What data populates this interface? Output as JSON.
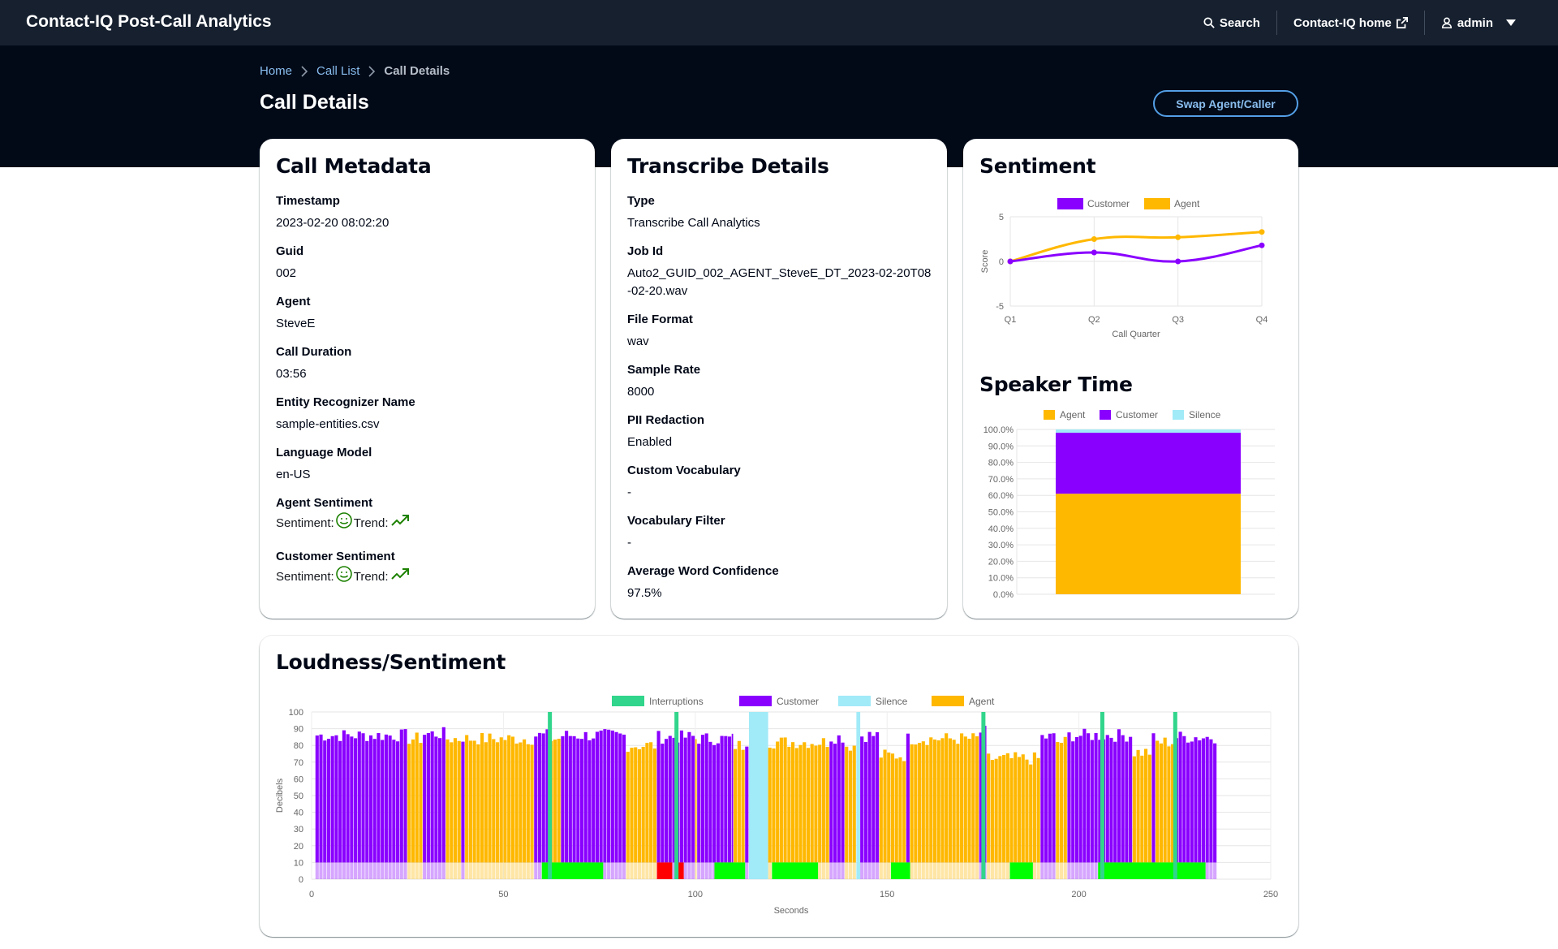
{
  "nav": {
    "title": "Contact-IQ Post-Call Analytics",
    "search_label": "Search",
    "home_label": "Contact-IQ home",
    "user_label": "admin"
  },
  "breadcrumb": [
    "Home",
    "Call List",
    "Call Details"
  ],
  "page": {
    "title": "Call Details",
    "swap_button": "Swap Agent/Caller"
  },
  "metadata": {
    "title": "Call Metadata",
    "fields": [
      {
        "label": "Timestamp",
        "value": "2023-02-20 08:02:20"
      },
      {
        "label": "Guid",
        "value": "002"
      },
      {
        "label": "Agent",
        "value": "SteveE"
      },
      {
        "label": "Call Duration",
        "value": "03:56"
      },
      {
        "label": "Entity Recognizer Name",
        "value": "sample-entities.csv"
      },
      {
        "label": "Language Model",
        "value": "en-US"
      }
    ],
    "agent_sentiment": {
      "label": "Agent Sentiment",
      "sentiment_text": "Sentiment:",
      "trend_text": "Trend:"
    },
    "customer_sentiment": {
      "label": "Customer Sentiment",
      "sentiment_text": "Sentiment:",
      "trend_text": "Trend:"
    }
  },
  "transcribe": {
    "title": "Transcribe Details",
    "fields": [
      {
        "label": "Type",
        "value": "Transcribe Call Analytics"
      },
      {
        "label": "Job Id",
        "value": "Auto2_GUID_002_AGENT_SteveE_DT_2023-02-20T08-02-20.wav"
      },
      {
        "label": "File Format",
        "value": "wav"
      },
      {
        "label": "Sample Rate",
        "value": "8000"
      },
      {
        "label": "PII Redaction",
        "value": "Enabled"
      },
      {
        "label": "Custom Vocabulary",
        "value": "-"
      },
      {
        "label": "Vocabulary Filter",
        "value": "-"
      },
      {
        "label": "Average Word Confidence",
        "value": "97.5%"
      }
    ]
  },
  "sentiment_card": {
    "title": "Sentiment",
    "speaker_time_title": "Speaker Time"
  },
  "loudness_card": {
    "title": "Loudness/Sentiment"
  },
  "colors": {
    "customer": "#8a00ff",
    "agent": "#ffb800",
    "silence": "#a1eaf8",
    "interruptions": "#31d58b",
    "positive": "#00ff00",
    "negative": "#ff0000"
  },
  "chart_data": [
    {
      "type": "line",
      "id": "sentiment",
      "categories": [
        "Q1",
        "Q2",
        "Q3",
        "Q4"
      ],
      "series": [
        {
          "name": "Customer",
          "values": [
            0,
            1,
            0,
            1.8
          ]
        },
        {
          "name": "Agent",
          "values": [
            0,
            2.5,
            2.7,
            3.3
          ]
        }
      ],
      "xlabel": "Call Quarter",
      "ylabel": "Score",
      "ylim": [
        -5,
        5
      ],
      "yticks": [
        "5",
        "0",
        "-5"
      ],
      "legend": "top",
      "grid": true
    },
    {
      "type": "bar",
      "id": "speaker_time",
      "stacked": true,
      "series": [
        {
          "name": "Agent",
          "values": [
            61
          ]
        },
        {
          "name": "Customer",
          "values": [
            37
          ]
        },
        {
          "name": "Silence",
          "values": [
            2
          ]
        }
      ],
      "yticks": [
        "100.0%",
        "90.0%",
        "80.0%",
        "70.0%",
        "60.0%",
        "50.0%",
        "40.0%",
        "30.0%",
        "20.0%",
        "10.0%",
        "0.0%"
      ],
      "ylim": [
        0,
        100
      ],
      "legend": "top",
      "grid": true
    },
    {
      "type": "bar",
      "id": "loudness",
      "xlabel": "Seconds",
      "ylabel": "Decibels",
      "xlim": [
        0,
        250
      ],
      "ylim": [
        0,
        100
      ],
      "xticks": [
        "0",
        "50",
        "100",
        "150",
        "200",
        "250"
      ],
      "yticks": [
        "100",
        "90",
        "80",
        "70",
        "60",
        "50",
        "40",
        "30",
        "20",
        "10",
        "0"
      ],
      "legend": "top",
      "grid": true,
      "legend_entries": [
        "Interruptions",
        "Customer",
        "Silence",
        "Agent"
      ],
      "segments": [
        {
          "speaker": "Customer",
          "start": 1,
          "end": 25,
          "level": 86
        },
        {
          "speaker": "Agent",
          "start": 25,
          "end": 29,
          "level": 84
        },
        {
          "speaker": "Customer",
          "start": 29,
          "end": 35,
          "level": 87
        },
        {
          "speaker": "Agent",
          "start": 35,
          "end": 39,
          "level": 84
        },
        {
          "speaker": "Customer",
          "start": 39,
          "end": 40,
          "level": 85
        },
        {
          "speaker": "Agent",
          "start": 40,
          "end": 58,
          "level": 84
        },
        {
          "speaker": "Customer",
          "start": 58,
          "end": 62,
          "level": 86
        },
        {
          "speaker": "Agent",
          "start": 62,
          "end": 65,
          "level": 84
        },
        {
          "speaker": "Customer",
          "start": 65,
          "end": 82,
          "level": 86
        },
        {
          "speaker": "Agent",
          "start": 82,
          "end": 90,
          "level": 80
        },
        {
          "speaker": "Customer",
          "start": 90,
          "end": 100,
          "level": 85
        },
        {
          "speaker": "Agent",
          "start": 100,
          "end": 100.5,
          "level": 84
        },
        {
          "speaker": "Customer",
          "start": 100.5,
          "end": 110,
          "level": 84
        },
        {
          "speaker": "Agent",
          "start": 110,
          "end": 113,
          "level": 80
        },
        {
          "speaker": "Customer",
          "start": 113,
          "end": 114,
          "level": 83
        },
        {
          "speaker": "Silence",
          "start": 114,
          "end": 119,
          "level": 100
        },
        {
          "speaker": "Agent",
          "start": 119,
          "end": 135,
          "level": 82
        },
        {
          "speaker": "Customer",
          "start": 135,
          "end": 139,
          "level": 85
        },
        {
          "speaker": "Agent",
          "start": 139,
          "end": 142,
          "level": 80
        },
        {
          "speaker": "Silence",
          "start": 142,
          "end": 143,
          "level": 100
        },
        {
          "speaker": "Customer",
          "start": 143,
          "end": 148,
          "level": 86
        },
        {
          "speaker": "Agent",
          "start": 148,
          "end": 155,
          "level": 74
        },
        {
          "speaker": "Customer",
          "start": 155,
          "end": 156,
          "level": 84
        },
        {
          "speaker": "Agent",
          "start": 156,
          "end": 174,
          "level": 84
        },
        {
          "speaker": "Customer",
          "start": 174,
          "end": 176,
          "level": 88
        },
        {
          "speaker": "Agent",
          "start": 176,
          "end": 190,
          "level": 72
        },
        {
          "speaker": "Customer",
          "start": 190,
          "end": 194,
          "level": 85
        },
        {
          "speaker": "Agent",
          "start": 194,
          "end": 197,
          "level": 82
        },
        {
          "speaker": "Customer",
          "start": 197,
          "end": 214,
          "level": 86
        },
        {
          "speaker": "Agent",
          "start": 214,
          "end": 219,
          "level": 76
        },
        {
          "speaker": "Customer",
          "start": 219,
          "end": 220,
          "level": 84
        },
        {
          "speaker": "Agent",
          "start": 220,
          "end": 225,
          "level": 82
        },
        {
          "speaker": "Customer",
          "start": 225,
          "end": 236,
          "level": 85
        }
      ],
      "interruptions": [
        62,
        95,
        175,
        206,
        225
      ],
      "sentiment_strip": [
        {
          "start": 60,
          "end": 76,
          "sentiment": "positive"
        },
        {
          "start": 90,
          "end": 94,
          "sentiment": "negative"
        },
        {
          "start": 95,
          "end": 97,
          "sentiment": "negative"
        },
        {
          "start": 105,
          "end": 113,
          "sentiment": "positive"
        },
        {
          "start": 120,
          "end": 132,
          "sentiment": "positive"
        },
        {
          "start": 151,
          "end": 156,
          "sentiment": "positive"
        },
        {
          "start": 182,
          "end": 188,
          "sentiment": "positive"
        },
        {
          "start": 205,
          "end": 233,
          "sentiment": "positive"
        }
      ]
    }
  ]
}
